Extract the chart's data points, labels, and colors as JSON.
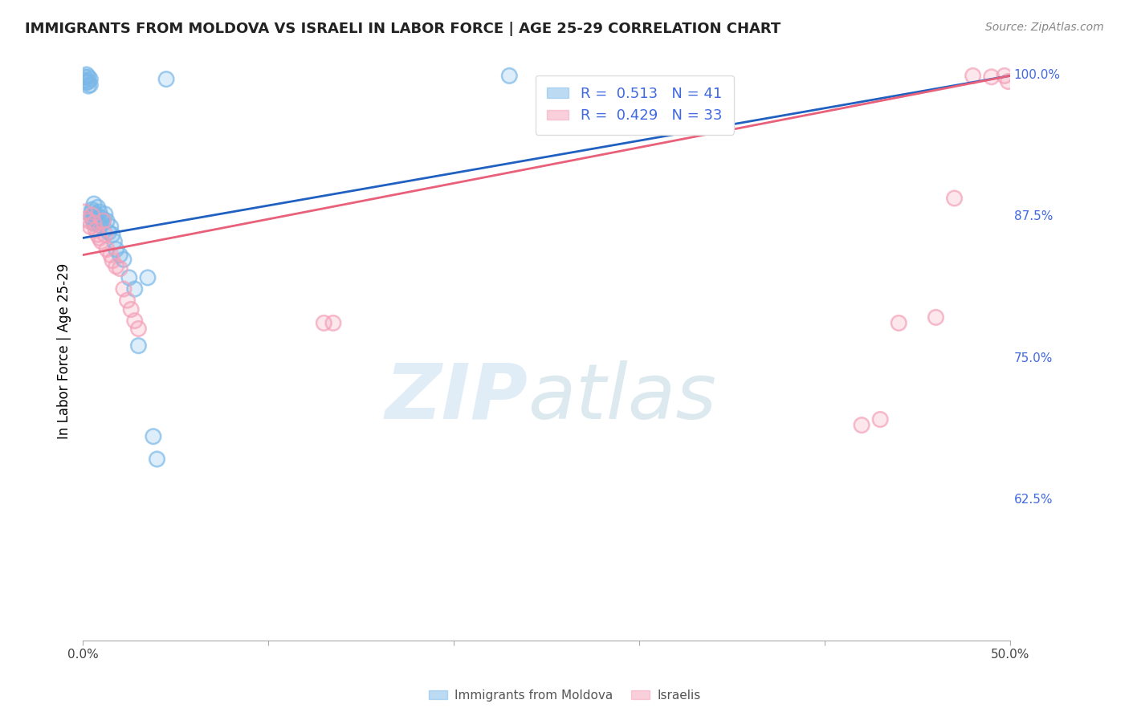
{
  "title": "IMMIGRANTS FROM MOLDOVA VS ISRAELI IN LABOR FORCE | AGE 25-29 CORRELATION CHART",
  "source": "Source: ZipAtlas.com",
  "ylabel": "In Labor Force | Age 25-29",
  "xlim": [
    0.0,
    0.5
  ],
  "ylim": [
    0.5,
    1.01
  ],
  "xticks": [
    0.0,
    0.1,
    0.2,
    0.3,
    0.4,
    0.5
  ],
  "yticks_right": [
    0.625,
    0.75,
    0.875,
    1.0
  ],
  "ytick_right_labels": [
    "62.5%",
    "75.0%",
    "87.5%",
    "100.0%"
  ],
  "blue_color": "#7ab8e8",
  "pink_color": "#f4a0b8",
  "blue_line_color": "#2060c0",
  "pink_line_color": "#e8607a",
  "legend_blue_r": "0.513",
  "legend_blue_n": "41",
  "legend_pink_r": "0.429",
  "legend_pink_n": "33",
  "legend_label_blue": "Immigrants from Moldova",
  "legend_label_pink": "Israelis",
  "blue_x": [
    0.001,
    0.001,
    0.002,
    0.002,
    0.003,
    0.003,
    0.003,
    0.004,
    0.004,
    0.005,
    0.005,
    0.005,
    0.006,
    0.006,
    0.006,
    0.007,
    0.007,
    0.008,
    0.008,
    0.009,
    0.009,
    0.01,
    0.01,
    0.011,
    0.012,
    0.013,
    0.014,
    0.015,
    0.016,
    0.017,
    0.018,
    0.02,
    0.022,
    0.025,
    0.028,
    0.03,
    0.035,
    0.038,
    0.04,
    0.045,
    0.23
  ],
  "blue_y": [
    0.997,
    0.994,
    0.999,
    0.992,
    0.997,
    0.993,
    0.989,
    0.995,
    0.99,
    0.88,
    0.878,
    0.873,
    0.885,
    0.875,
    0.868,
    0.876,
    0.871,
    0.882,
    0.872,
    0.878,
    0.866,
    0.873,
    0.868,
    0.871,
    0.876,
    0.87,
    0.86,
    0.865,
    0.858,
    0.852,
    0.845,
    0.84,
    0.836,
    0.82,
    0.81,
    0.76,
    0.82,
    0.68,
    0.66,
    0.995,
    0.998
  ],
  "pink_x": [
    0.001,
    0.002,
    0.003,
    0.004,
    0.005,
    0.006,
    0.007,
    0.008,
    0.009,
    0.01,
    0.011,
    0.012,
    0.013,
    0.015,
    0.016,
    0.018,
    0.02,
    0.022,
    0.024,
    0.026,
    0.028,
    0.03,
    0.13,
    0.135,
    0.42,
    0.43,
    0.44,
    0.46,
    0.47,
    0.48,
    0.49,
    0.497,
    0.499
  ],
  "pink_y": [
    0.878,
    0.872,
    0.87,
    0.865,
    0.875,
    0.868,
    0.862,
    0.858,
    0.855,
    0.852,
    0.87,
    0.858,
    0.845,
    0.84,
    0.835,
    0.83,
    0.828,
    0.81,
    0.8,
    0.792,
    0.782,
    0.775,
    0.78,
    0.78,
    0.69,
    0.695,
    0.78,
    0.785,
    0.89,
    0.998,
    0.997,
    0.998,
    0.993
  ],
  "blue_trend_x": [
    0.0,
    0.5
  ],
  "blue_trend_y": [
    0.855,
    0.998
  ],
  "pink_trend_x": [
    0.0,
    0.5
  ],
  "pink_trend_y": [
    0.84,
    0.998
  ]
}
